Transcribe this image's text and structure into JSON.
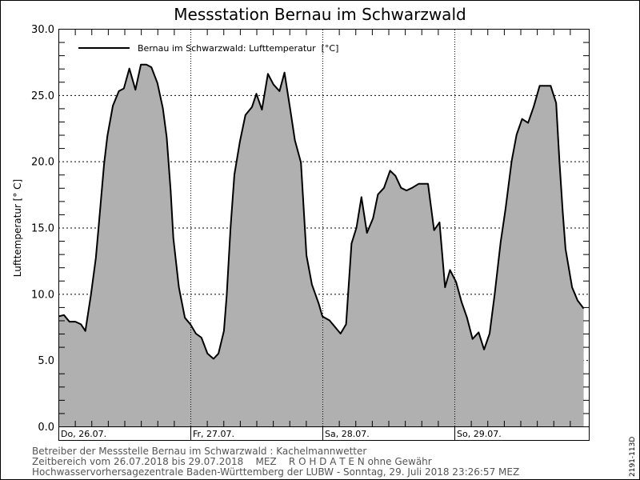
{
  "chart_data": {
    "type": "area",
    "title": "Messstation Bernau im Schwarzwald",
    "ylabel": "Lufttemperatur [° C]",
    "xlabel": "",
    "ylim": [
      0,
      30
    ],
    "yticks": [
      "0.0",
      "5.0",
      "10.0",
      "15.0",
      "20.0",
      "25.0",
      "30.0"
    ],
    "grid": true,
    "legend_position": "top-left",
    "fill_color": "#b0b0b0",
    "line_color": "#000000",
    "days": [
      "Do, 26.07.",
      "Fr, 27.07.",
      "Sa, 28.07.",
      "So, 29.07."
    ],
    "series": [
      {
        "name": "Bernau im Schwarzwald: Lufttemperatur  [°C]",
        "points": [
          [
            "26.07. 00:00",
            8.3
          ],
          [
            "26.07. 01:00",
            8.4
          ],
          [
            "26.07. 02:00",
            7.9
          ],
          [
            "26.07. 03:06",
            7.9
          ],
          [
            "26.07. 04:06",
            7.7
          ],
          [
            "26.07. 04:54",
            7.2
          ],
          [
            "26.07. 05:54",
            9.9
          ],
          [
            "26.07. 06:48",
            12.7
          ],
          [
            "26.07. 07:18",
            15.0
          ],
          [
            "26.07. 08:18",
            19.8
          ],
          [
            "26.07. 08:54",
            21.9
          ],
          [
            "26.07. 09:54",
            24.2
          ],
          [
            "26.07. 11:00",
            25.3
          ],
          [
            "26.07. 11:54",
            25.5
          ],
          [
            "26.07. 12:54",
            27.0
          ],
          [
            "26.07. 14:00",
            25.4
          ],
          [
            "26.07. 15:00",
            27.3
          ],
          [
            "26.07. 16:00",
            27.3
          ],
          [
            "26.07. 16:54",
            27.1
          ],
          [
            "26.07. 18:00",
            25.9
          ],
          [
            "26.07. 19:00",
            24.0
          ],
          [
            "26.07. 19:42",
            21.8
          ],
          [
            "26.07. 20:24",
            17.8
          ],
          [
            "26.07. 20:54",
            14.2
          ],
          [
            "26.07. 21:54",
            10.5
          ],
          [
            "26.07. 23:00",
            8.2
          ],
          [
            "27.07. 00:00",
            7.7
          ],
          [
            "27.07. 01:00",
            7.0
          ],
          [
            "27.07. 02:00",
            6.7
          ],
          [
            "27.07. 03:06",
            5.5
          ],
          [
            "27.07. 04:12",
            5.1
          ],
          [
            "27.07. 05:06",
            5.5
          ],
          [
            "27.07. 06:06",
            7.2
          ],
          [
            "27.07. 06:36",
            9.9
          ],
          [
            "27.07. 07:18",
            15.0
          ],
          [
            "27.07. 08:00",
            19.0
          ],
          [
            "27.07. 09:00",
            21.5
          ],
          [
            "27.07. 10:00",
            23.5
          ],
          [
            "27.07. 11:12",
            24.1
          ],
          [
            "27.07. 12:00",
            25.1
          ],
          [
            "27.07. 13:00",
            23.9
          ],
          [
            "27.07. 14:06",
            26.6
          ],
          [
            "27.07. 15:06",
            25.8
          ],
          [
            "27.07. 16:12",
            25.3
          ],
          [
            "27.07. 17:06",
            26.7
          ],
          [
            "27.07. 18:12",
            23.8
          ],
          [
            "27.07. 19:00",
            21.6
          ],
          [
            "27.07. 20:06",
            19.9
          ],
          [
            "27.07. 21:06",
            12.9
          ],
          [
            "27.07. 22:06",
            10.7
          ],
          [
            "27.07. 23:18",
            9.3
          ],
          [
            "28.07. 00:00",
            8.3
          ],
          [
            "28.07. 01:18",
            8.0
          ],
          [
            "28.07. 03:18",
            7.0
          ],
          [
            "28.07. 04:18",
            7.7
          ],
          [
            "28.07. 05:18",
            13.8
          ],
          [
            "28.07. 06:12",
            15.0
          ],
          [
            "28.07. 07:06",
            17.3
          ],
          [
            "28.07. 08:06",
            14.6
          ],
          [
            "28.07. 09:12",
            15.7
          ],
          [
            "28.07. 10:06",
            17.5
          ],
          [
            "28.07. 11:12",
            18.0
          ],
          [
            "28.07. 12:18",
            19.3
          ],
          [
            "28.07. 13:18",
            18.9
          ],
          [
            "28.07. 14:18",
            18.0
          ],
          [
            "28.07. 15:18",
            17.8
          ],
          [
            "28.07. 16:18",
            18.0
          ],
          [
            "28.07. 17:30",
            18.3
          ],
          [
            "28.07. 19:12",
            18.3
          ],
          [
            "28.07. 20:18",
            14.8
          ],
          [
            "28.07. 21:18",
            15.4
          ],
          [
            "28.07. 22:18",
            10.5
          ],
          [
            "28.07. 23:12",
            11.8
          ],
          [
            "29.07. 00:18",
            10.9
          ],
          [
            "29.07. 01:18",
            9.4
          ],
          [
            "29.07. 02:18",
            8.2
          ],
          [
            "29.07. 03:18",
            6.6
          ],
          [
            "29.07. 04:24",
            7.1
          ],
          [
            "29.07. 05:24",
            5.8
          ],
          [
            "29.07. 06:24",
            7.0
          ],
          [
            "29.07. 07:18",
            9.9
          ],
          [
            "29.07. 08:24",
            13.9
          ],
          [
            "29.07. 09:18",
            16.4
          ],
          [
            "29.07. 10:24",
            20.0
          ],
          [
            "29.07. 11:18",
            22.0
          ],
          [
            "29.07. 12:18",
            23.2
          ],
          [
            "29.07. 13:24",
            22.9
          ],
          [
            "29.07. 14:24",
            24.1
          ],
          [
            "29.07. 15:30",
            25.7
          ],
          [
            "29.07. 17:30",
            25.7
          ],
          [
            "29.07. 18:30",
            24.4
          ],
          [
            "29.07. 19:06",
            20.0
          ],
          [
            "29.07. 19:42",
            16.2
          ],
          [
            "29.07. 20:12",
            13.4
          ],
          [
            "29.07. 21:24",
            10.5
          ],
          [
            "29.07. 22:24",
            9.5
          ],
          [
            "29.07. 23:30",
            8.9
          ]
        ]
      }
    ]
  },
  "footer": {
    "line1": "Betreiber der Messstelle Bernau im Schwarzwald : Kachelmannwetter",
    "line2": "Zeitbereich vom 26.07.2018 bis 29.07.2018    MEZ    R O H D A T E N ohne Gewähr",
    "line3": "Hochwasservorhersagezentrale Baden-Württemberg der LUBW - Sonntag, 29. Juli 2018 23:26:57 MEZ"
  },
  "side_code": "2191-113D"
}
